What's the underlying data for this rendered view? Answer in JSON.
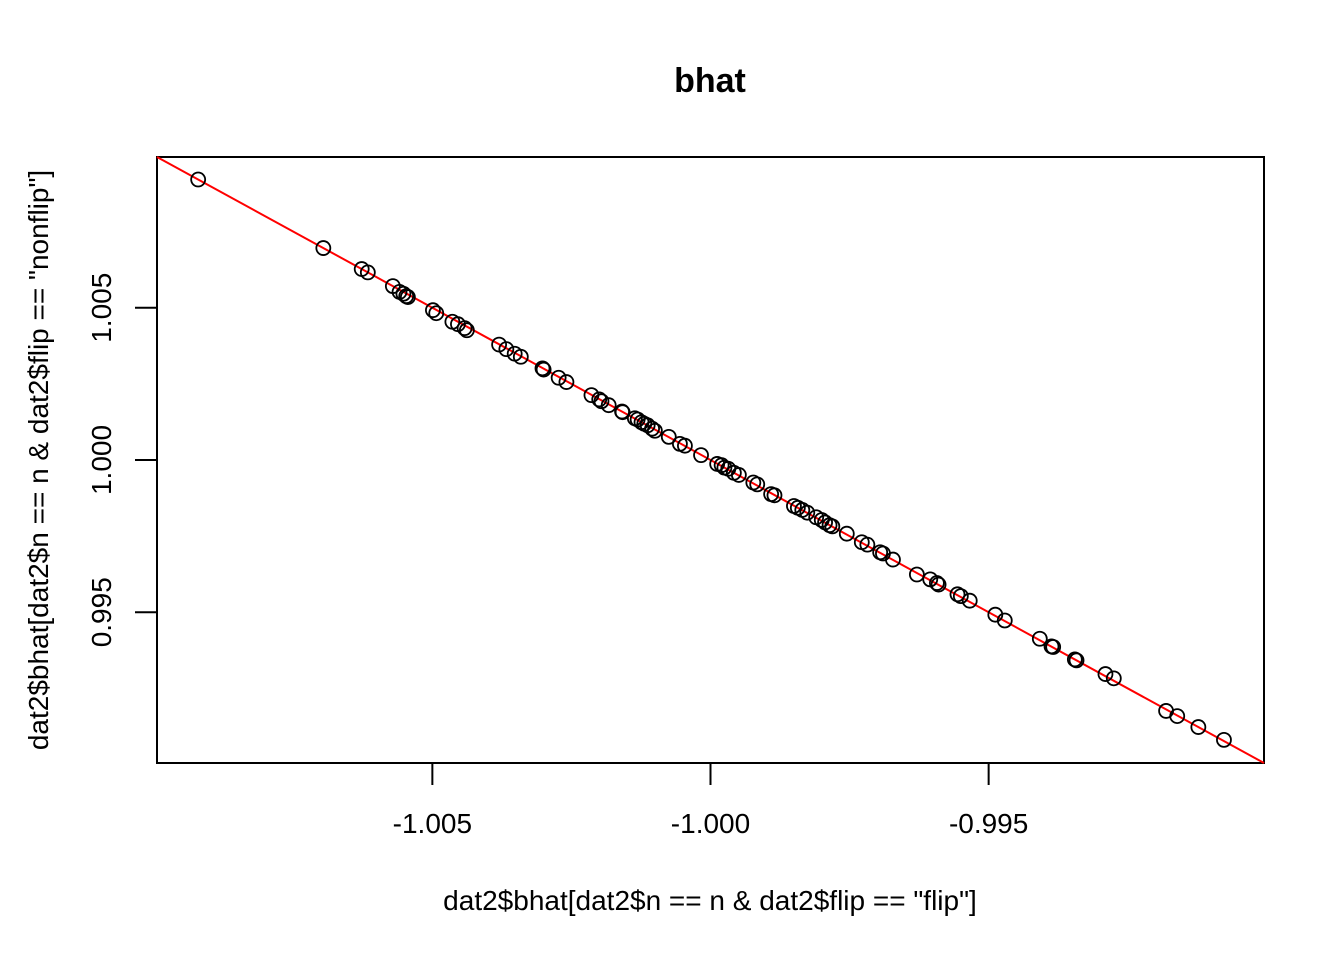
{
  "chart_data": {
    "type": "scatter",
    "title": "bhat",
    "xlabel": "dat2$bhat[dat2$n == n & dat2$flip == \"flip\"]",
    "ylabel": "dat2$bhat[dat2$n == n & dat2$flip == \"nonflip\"]",
    "xlim": [
      -1.00995,
      -0.99005
    ],
    "ylim": [
      0.99005,
      1.00995
    ],
    "xticks": [
      -1.005,
      -1.0,
      -0.995
    ],
    "xtick_labels": [
      "-1.005",
      "-1.000",
      "-0.995"
    ],
    "yticks": [
      0.995,
      1.0,
      1.005
    ],
    "ytick_labels": [
      "0.995",
      "1.000",
      "1.005"
    ],
    "reference_line": {
      "intercept": 0,
      "slope": -1,
      "color": "#ff0000"
    },
    "point_color": "#000000",
    "x": [
      -1.00921,
      -1.00696,
      -1.00627,
      -1.00616,
      -1.00571,
      -1.00559,
      -1.00552,
      -1.00547,
      -1.00544,
      -1.00499,
      -1.00493,
      -1.00464,
      -1.00454,
      -1.00442,
      -1.00438,
      -1.0038,
      -1.00367,
      -1.00352,
      -1.00341,
      -1.00302,
      -1.003,
      -1.00273,
      -1.00259,
      -1.00214,
      -1.002,
      -1.00196,
      -1.00183,
      -1.00159,
      -1.00158,
      -1.00136,
      -1.00131,
      -1.00124,
      -1.00119,
      -1.00113,
      -1.00105,
      -1.001,
      -1.00075,
      -1.00055,
      -1.00046,
      -1.00017,
      -0.99988,
      -0.9998,
      -0.99975,
      -0.99968,
      -0.99958,
      -0.99949,
      -0.99923,
      -0.99916,
      -0.99891,
      -0.99885,
      -0.9985,
      -0.99843,
      -0.99835,
      -0.99826,
      -0.9981,
      -0.998,
      -0.99794,
      -0.99786,
      -0.99781,
      -0.99755,
      -0.99728,
      -0.99718,
      -0.99695,
      -0.9969,
      -0.99672,
      -0.99629,
      -0.99605,
      -0.99593,
      -0.9959,
      -0.99556,
      -0.9955,
      -0.99534,
      -0.99488,
      -0.99471,
      -0.99408,
      -0.99387,
      -0.99384,
      -0.99345,
      -0.99342,
      -0.9929,
      -0.99275,
      -0.99181,
      -0.99161,
      -0.99123,
      -0.99077
    ],
    "y": [
      1.00921,
      1.00696,
      1.00627,
      1.00616,
      1.00571,
      1.00552,
      1.00546,
      1.00538,
      1.00535,
      1.00492,
      1.00482,
      1.00454,
      1.00446,
      1.00433,
      1.00426,
      1.00379,
      1.00364,
      1.00349,
      1.00339,
      1.00301,
      1.00297,
      1.0027,
      1.00256,
      1.00213,
      1.00199,
      1.00193,
      1.0018,
      1.00159,
      1.00157,
      1.00137,
      1.00133,
      1.00124,
      1.00119,
      1.00114,
      1.00103,
      1.00096,
      1.00076,
      1.00053,
      1.00047,
      1.00016,
      0.99987,
      0.99983,
      0.99975,
      0.99971,
      0.99958,
      0.99951,
      0.99926,
      0.9992,
      0.99888,
      0.99884,
      0.99849,
      0.99843,
      0.99836,
      0.99827,
      0.99812,
      0.99803,
      0.99795,
      0.99786,
      0.99782,
      0.99758,
      0.9973,
      0.99722,
      0.99697,
      0.99693,
      0.99673,
      0.99624,
      0.99608,
      0.99596,
      0.99591,
      0.99559,
      0.99553,
      0.99538,
      0.99492,
      0.99473,
      0.99413,
      0.99388,
      0.99386,
      0.99345,
      0.99342,
      0.99297,
      0.99283,
      0.99176,
      0.99159,
      0.99123,
      0.99081
    ]
  }
}
